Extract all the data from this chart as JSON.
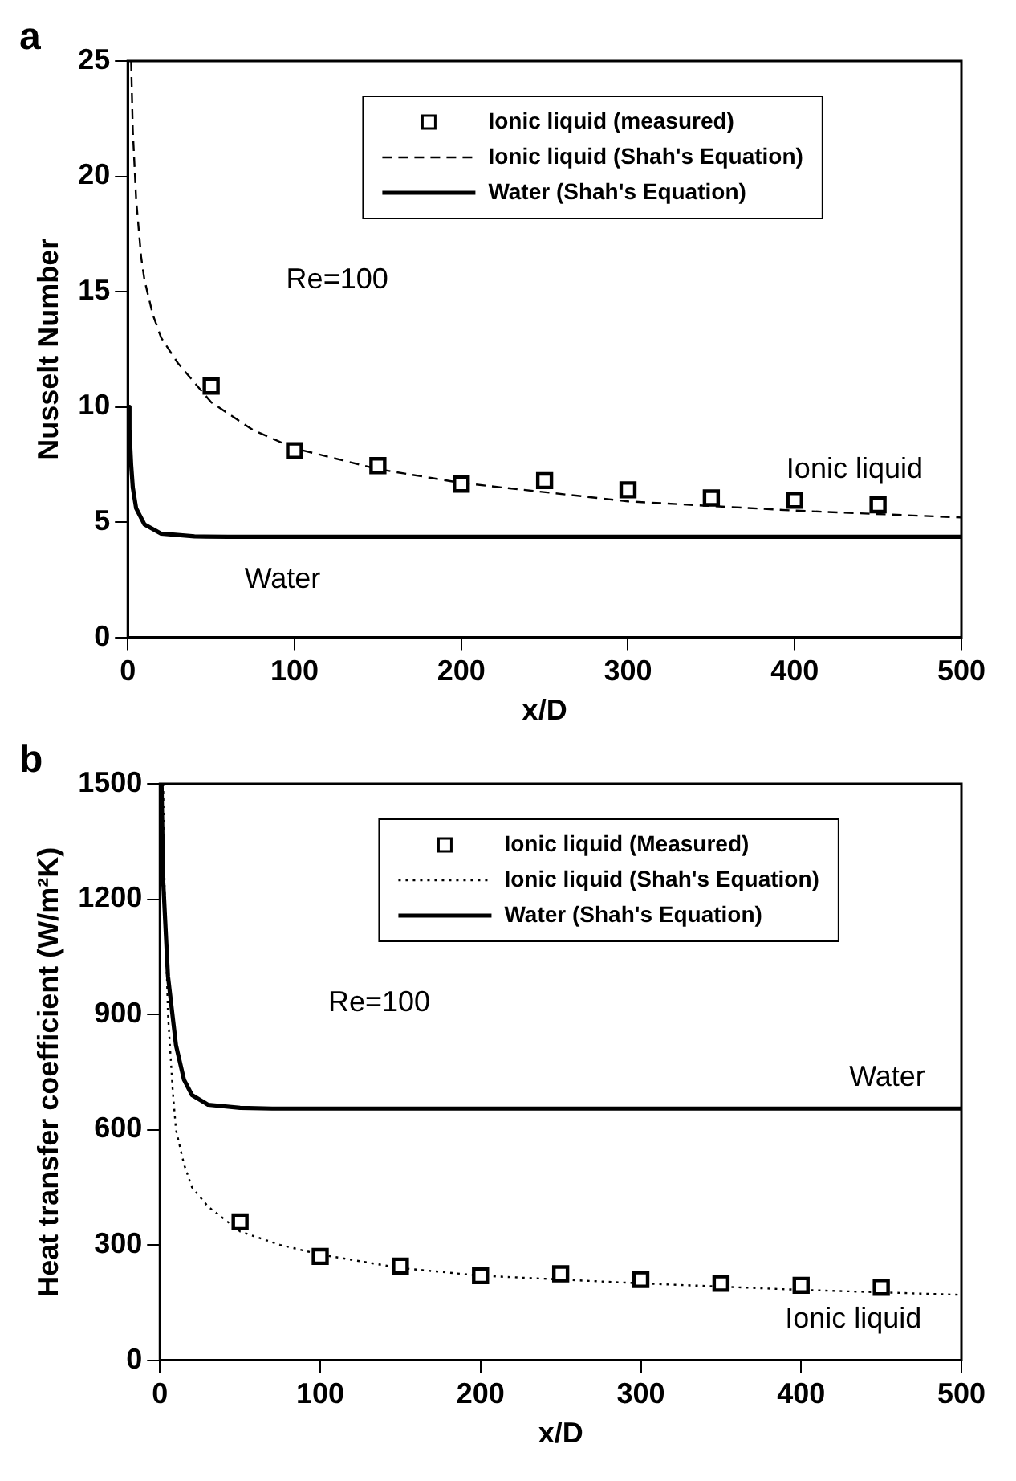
{
  "chart_data": [
    {
      "type": "line",
      "title": "a",
      "xlabel": "x/D",
      "ylabel": "Nusselt Number",
      "xlim": [
        0,
        500
      ],
      "xticks": [
        0,
        100,
        200,
        300,
        400,
        500
      ],
      "ylim": [
        0,
        25
      ],
      "yticks": [
        0,
        5,
        10,
        15,
        20,
        25
      ],
      "grid": false,
      "legend": "top",
      "annotations": [
        "Re=100",
        "Ionic liquid",
        "Water"
      ],
      "series": [
        {
          "name": "Ionic liquid (measured)",
          "type": "scatter",
          "marker": "square",
          "color": "#000000",
          "x": [
            50,
            100,
            150,
            200,
            250,
            300,
            350,
            400,
            450
          ],
          "values": [
            10.9,
            8.1,
            7.45,
            6.65,
            6.8,
            6.4,
            6.05,
            5.95,
            5.75
          ]
        },
        {
          "name": "Ionic liquid (Shah's Equation)",
          "type": "line",
          "line_style": "dashed",
          "color": "#000000",
          "x": [
            2,
            3,
            5,
            8,
            10,
            15,
            20,
            30,
            50,
            75,
            100,
            150,
            200,
            300,
            400,
            500
          ],
          "values": [
            25,
            22,
            19,
            16.5,
            15.5,
            14,
            13,
            11.9,
            10.2,
            9,
            8.2,
            7.3,
            6.7,
            5.9,
            5.5,
            5.2
          ]
        },
        {
          "name": "Water (Shah's Equation)",
          "type": "line",
          "line_style": "solid",
          "color": "#000000",
          "x": [
            0.5,
            1,
            2,
            3,
            5,
            10,
            20,
            40,
            60,
            500
          ],
          "values": [
            10,
            9,
            7.5,
            6.5,
            5.6,
            4.9,
            4.5,
            4.38,
            4.36,
            4.36
          ]
        }
      ]
    },
    {
      "type": "line",
      "title": "b",
      "xlabel": "x/D",
      "ylabel": "Heat transfer coefficient (W/m²K)",
      "xlim": [
        0,
        500
      ],
      "xticks": [
        0,
        100,
        200,
        300,
        400,
        500
      ],
      "ylim": [
        0,
        1500
      ],
      "yticks": [
        0,
        300,
        600,
        900,
        1200,
        1500
      ],
      "grid": false,
      "legend": "top",
      "annotations": [
        "Re=100",
        "Water",
        "Ionic liquid"
      ],
      "series": [
        {
          "name": "Ionic liquid (Measured)",
          "type": "scatter",
          "marker": "square",
          "color": "#000000",
          "x": [
            50,
            100,
            150,
            200,
            250,
            300,
            350,
            400,
            450
          ],
          "values": [
            360,
            270,
            245,
            220,
            225,
            210,
            200,
            195,
            190
          ]
        },
        {
          "name": "Ionic liquid (Shah's Equation)",
          "type": "line",
          "line_style": "dotted",
          "color": "#000000",
          "x": [
            2,
            3,
            5,
            8,
            10,
            15,
            20,
            30,
            50,
            75,
            100,
            150,
            200,
            300,
            400,
            500
          ],
          "values": [
            1500,
            1200,
            900,
            700,
            600,
            510,
            450,
            400,
            335,
            300,
            275,
            240,
            220,
            200,
            183,
            170
          ]
        },
        {
          "name": "Water (Shah's Equation)",
          "type": "line",
          "line_style": "solid",
          "color": "#000000",
          "x": [
            1,
            2,
            5,
            10,
            15,
            20,
            30,
            50,
            70,
            500
          ],
          "values": [
            1500,
            1250,
            1000,
            820,
            730,
            690,
            665,
            657,
            655,
            655
          ]
        }
      ]
    }
  ]
}
